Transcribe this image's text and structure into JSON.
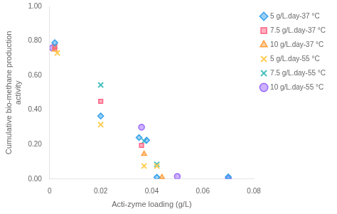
{
  "chart_data": {
    "type": "scatter",
    "xlabel": "Acti-zyme loading (g/L)",
    "ylabel": "Cumulative bio-methane production\nactivity",
    "series": [
      {
        "name": "5 g/L.day-37 °C",
        "marker": "diamond",
        "x": [
          0.002,
          0.02,
          0.035,
          0.038,
          0.042,
          0.07
        ],
        "values": [
          0.79,
          0.365,
          0.24,
          0.225,
          0.01,
          0.012
        ]
      },
      {
        "name": "7.5 g/L.day-37 °C",
        "marker": "square",
        "x": [
          0.002,
          0.02,
          0.036
        ],
        "values": [
          0.765,
          0.45,
          0.195
        ]
      },
      {
        "name": "10 g/L.day-37 °C",
        "marker": "triangle",
        "x": [
          0.002,
          0.037,
          0.044
        ],
        "values": [
          0.75,
          0.145,
          0.01
        ]
      },
      {
        "name": "5 g/L.day-55 °C",
        "marker": "x",
        "x": [
          0.003,
          0.02,
          0.037,
          0.042
        ],
        "values": [
          0.73,
          0.315,
          0.075,
          0.075
        ]
      },
      {
        "name": "7.5 g/L.day-55 °C",
        "marker": "x",
        "x": [
          0.002,
          0.02,
          0.037,
          0.042
        ],
        "values": [
          0.77,
          0.545,
          0.22,
          0.085
        ]
      },
      {
        "name": "10 g/L.day-55 °C",
        "marker": "circle",
        "x": [
          0.001,
          0.036,
          0.05,
          0.07
        ],
        "values": [
          0.76,
          0.3,
          0.015,
          0.003
        ]
      }
    ],
    "xlim": [
      0,
      0.08
    ],
    "xticks": [
      0,
      0.02,
      0.04,
      0.06,
      0.08
    ],
    "ylim": [
      0,
      1.0
    ],
    "yticks": [
      {
        "value": 0,
        "label": "0.00"
      },
      {
        "value": 0.2,
        "label": "0.20"
      },
      {
        "value": 0.4,
        "label": "0.40"
      },
      {
        "value": 0.6,
        "label": "0.60"
      },
      {
        "value": 0.8,
        "label": "0.80"
      },
      {
        "value": 1.0,
        "label": "1.00"
      }
    ],
    "grid": false,
    "legend": "right"
  }
}
